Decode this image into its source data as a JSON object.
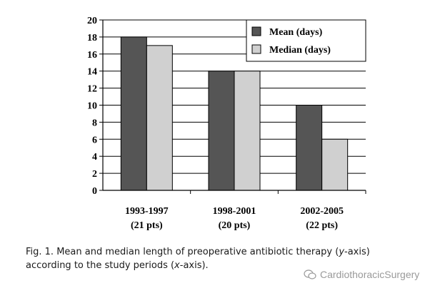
{
  "chart_data": {
    "type": "bar",
    "categories": [
      [
        "1993-1997",
        "(21 pts)"
      ],
      [
        "1998-2001",
        "(20 pts)"
      ],
      [
        "2002-2005",
        "(22 pts)"
      ]
    ],
    "series": [
      {
        "name": "Mean (days)",
        "values": [
          18,
          14,
          10
        ],
        "color": "#555555"
      },
      {
        "name": "Median (days)",
        "values": [
          17,
          14,
          6
        ],
        "color": "#d0d0d0"
      }
    ],
    "ylim": [
      0,
      20
    ],
    "yticks": [
      0,
      2,
      4,
      6,
      8,
      10,
      12,
      14,
      16,
      18,
      20
    ],
    "grid": "horizontal",
    "legend": "top-right"
  },
  "caption": {
    "prefix": "Fig. 1. Mean and median length of preoperative antibiotic therapy (",
    "y_italic": "y",
    "middle": "-axis)",
    "line2_start": "according to the study periods (",
    "x_italic": "x",
    "end": "-axis)."
  },
  "watermark": {
    "text": "CardiothoracicSurgery",
    "icon": "wechat-icon"
  }
}
